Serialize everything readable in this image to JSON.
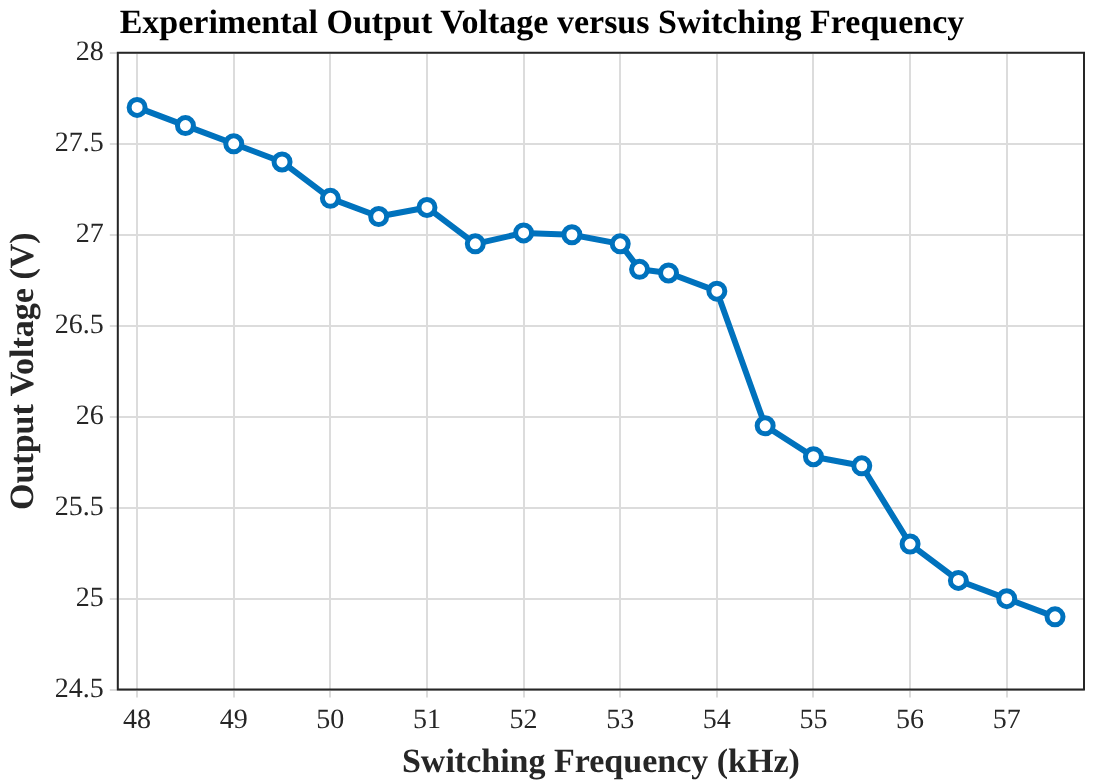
{
  "chart_data": {
    "type": "line",
    "title": "Experimental Output Voltage versus Switching Frequency",
    "xlabel": "Switching Frequency (kHz)",
    "ylabel": "Output Voltage (V)",
    "x": [
      48,
      48.5,
      49,
      49.5,
      50,
      50.5,
      51,
      51.5,
      52,
      52.5,
      53,
      53.2,
      53.5,
      54,
      54.5,
      55,
      55.5,
      56,
      56.5,
      57,
      57.5
    ],
    "series": [
      {
        "color": "#0072bd",
        "values": [
          27.7,
          27.6,
          27.5,
          27.4,
          27.2,
          27.1,
          27.15,
          26.95,
          27.01,
          27.0,
          26.95,
          26.81,
          26.79,
          26.69,
          25.95,
          25.78,
          25.73,
          25.3,
          25.1,
          25.0,
          24.9
        ]
      }
    ],
    "xlim": [
      47.8,
      57.8
    ],
    "xticks": [
      48,
      49,
      50,
      51,
      52,
      53,
      54,
      55,
      56,
      57
    ],
    "ylim": [
      24.5,
      28
    ],
    "yticks": [
      24.5,
      25,
      25.5,
      26,
      26.5,
      27,
      27.5,
      28
    ],
    "grid": true,
    "marker": "circle",
    "line_style": "solid"
  }
}
